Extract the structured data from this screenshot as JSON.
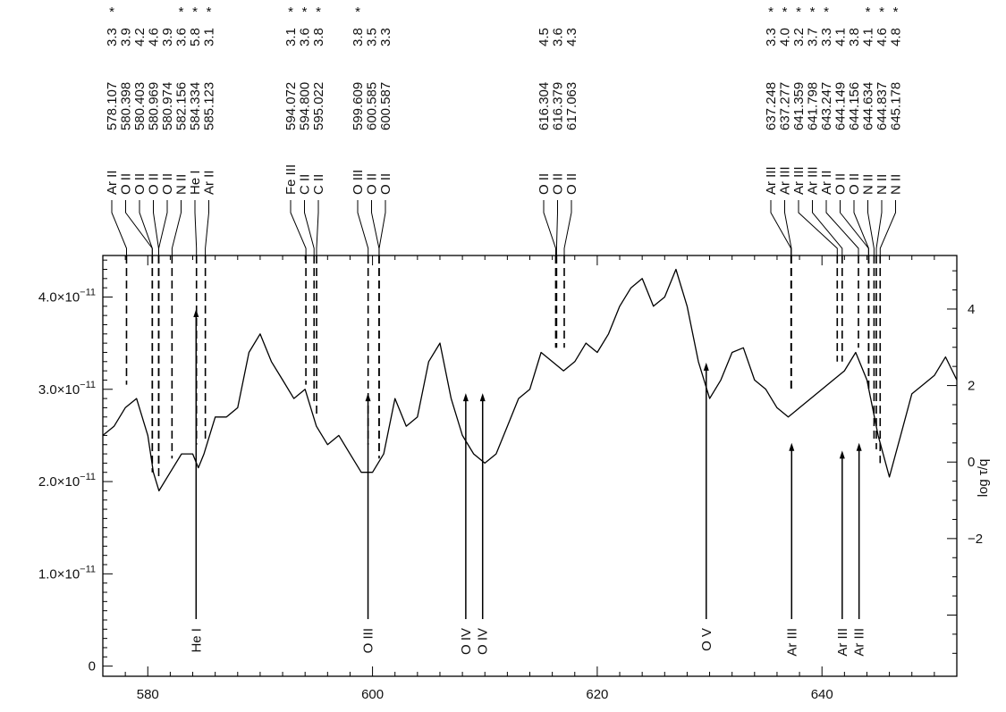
{
  "chart_data": {
    "type": "line",
    "title": "",
    "xlabel": "",
    "ylabel": "",
    "y2label": "log τ/q",
    "xlim": [
      576,
      652
    ],
    "ylim": [
      -1.1e-12,
      4.45e-11
    ],
    "y2lim": [
      -5.6,
      5.4
    ],
    "x_ticks": [
      "580",
      "600",
      "620",
      "640"
    ],
    "y_ticks": [
      {
        "value": 0,
        "base": "0",
        "exp": ""
      },
      {
        "value": 1e-11,
        "base": "1.0×10",
        "exp": "−11"
      },
      {
        "value": 2e-11,
        "base": "2.0×10",
        "exp": "−11"
      },
      {
        "value": 3e-11,
        "base": "3.0×10",
        "exp": "−11"
      },
      {
        "value": 4e-11,
        "base": "4.0×10",
        "exp": "−11"
      }
    ],
    "y2_ticks": [
      "−2",
      "0",
      "2",
      "4"
    ],
    "series": [
      {
        "x": [
          576,
          577,
          578,
          579,
          580,
          580.5,
          581,
          582,
          583,
          584,
          584.5,
          585,
          586,
          587,
          588,
          589,
          590,
          591,
          592,
          593,
          594,
          595,
          596,
          597,
          598,
          599,
          600,
          601,
          602,
          603,
          604,
          605,
          606,
          607,
          608,
          609,
          610,
          611,
          612,
          613,
          614,
          615,
          616,
          617,
          618,
          619,
          620,
          621,
          622,
          623,
          624,
          625,
          626,
          627,
          628,
          629,
          630,
          631,
          632,
          633,
          634,
          635,
          636,
          637,
          638,
          639,
          640,
          641,
          642,
          643,
          644,
          645,
          646,
          647,
          648,
          649,
          650,
          651,
          652
        ],
        "y": [
          2.5e-11,
          2.6e-11,
          2.8e-11,
          2.9e-11,
          2.5e-11,
          2.1e-11,
          1.9e-11,
          2.1e-11,
          2.3e-11,
          2.3e-11,
          2.15e-11,
          2.3e-11,
          2.7e-11,
          2.7e-11,
          2.8e-11,
          3.4e-11,
          3.6e-11,
          3.3e-11,
          3.1e-11,
          2.9e-11,
          3e-11,
          2.6e-11,
          2.4e-11,
          2.5e-11,
          2.3e-11,
          2.1e-11,
          2.1e-11,
          2.3e-11,
          2.9e-11,
          2.6e-11,
          2.7e-11,
          3.3e-11,
          3.5e-11,
          2.9e-11,
          2.5e-11,
          2.3e-11,
          2.2e-11,
          2.3e-11,
          2.6e-11,
          2.9e-11,
          3e-11,
          3.4e-11,
          3.3e-11,
          3.2e-11,
          3.3e-11,
          3.5e-11,
          3.4e-11,
          3.6e-11,
          3.9e-11,
          4.1e-11,
          4.2e-11,
          3.9e-11,
          4e-11,
          4.3e-11,
          3.9e-11,
          3.3e-11,
          2.9e-11,
          3.1e-11,
          3.4e-11,
          3.45e-11,
          3.1e-11,
          3e-11,
          2.8e-11,
          2.7e-11,
          2.8e-11,
          2.9e-11,
          3e-11,
          3.1e-11,
          3.2e-11,
          3.4e-11,
          3.1e-11,
          2.5e-11,
          2.05e-11,
          2.5e-11,
          2.95e-11,
          3.05e-11,
          3.15e-11,
          3.35e-11,
          3.1e-11
        ]
      }
    ],
    "lines": [
      {
        "ion": "Ar II",
        "wl": "578.107",
        "val": "3.3",
        "star": true,
        "wl_num": 578.107,
        "data_top": 3.05e-11
      },
      {
        "ion": "O II",
        "wl": "580.398",
        "val": "3.9",
        "star": false,
        "wl_num": 580.398,
        "data_top": 2.3e-11
      },
      {
        "ion": "O II",
        "wl": "580.403",
        "val": "4.2",
        "star": false,
        "wl_num": 580.403,
        "data_top": 2.1e-11
      },
      {
        "ion": "O II",
        "wl": "580.969",
        "val": "4.6",
        "star": false,
        "wl_num": 580.969,
        "data_top": 2.15e-11
      },
      {
        "ion": "O II",
        "wl": "580.974",
        "val": "3.9",
        "star": false,
        "wl_num": 580.974,
        "data_top": 2.05e-11
      },
      {
        "ion": "N II",
        "wl": "582.156",
        "val": "3.6",
        "star": true,
        "wl_num": 582.156,
        "data_top": 2.25e-11
      },
      {
        "ion": "He I",
        "wl": "584.334",
        "val": "5.8",
        "star": true,
        "wl_num": 584.334,
        "data_top": 2.4e-11
      },
      {
        "ion": "Ar II",
        "wl": "585.123",
        "val": "3.1",
        "star": true,
        "wl_num": 585.123,
        "data_top": 2.45e-11
      },
      {
        "ion": "Fe III",
        "wl": "594.072",
        "val": "3.1",
        "star": true,
        "wl_num": 594.072,
        "data_top": 3.05e-11
      },
      {
        "ion": "C II",
        "wl": "594.800",
        "val": "3.6",
        "star": true,
        "wl_num": 594.8,
        "data_top": 2.85e-11
      },
      {
        "ion": "C II",
        "wl": "595.022",
        "val": "3.8",
        "star": true,
        "wl_num": 595.022,
        "data_top": 2.7e-11
      },
      {
        "ion": "O III",
        "wl": "599.609",
        "val": "3.8",
        "star": true,
        "wl_num": 599.609,
        "data_top": 2.4e-11
      },
      {
        "ion": "O II",
        "wl": "600.585",
        "val": "3.5",
        "star": false,
        "wl_num": 600.585,
        "data_top": 2.3e-11
      },
      {
        "ion": "O II",
        "wl": "600.587",
        "val": "3.3",
        "star": false,
        "wl_num": 600.587,
        "data_top": 2.25e-11
      },
      {
        "ion": "O II",
        "wl": "616.304",
        "val": "4.5",
        "star": false,
        "wl_num": 616.304,
        "data_top": 3.45e-11
      },
      {
        "ion": "O II",
        "wl": "616.379",
        "val": "3.6",
        "star": false,
        "wl_num": 616.379,
        "data_top": 3.45e-11
      },
      {
        "ion": "O II",
        "wl": "617.063",
        "val": "4.3",
        "star": false,
        "wl_num": 617.063,
        "data_top": 3.45e-11
      },
      {
        "ion": "Ar III",
        "wl": "637.248",
        "val": "3.3",
        "star": true,
        "wl_num": 637.248,
        "data_top": 3e-11
      },
      {
        "ion": "Ar III",
        "wl": "637.277",
        "val": "4.0",
        "star": true,
        "wl_num": 637.277,
        "data_top": 3e-11
      },
      {
        "ion": "Ar III",
        "wl": "641.359",
        "val": "3.2",
        "star": true,
        "wl_num": 641.359,
        "data_top": 3.3e-11
      },
      {
        "ion": "Ar III",
        "wl": "641.798",
        "val": "3.7",
        "star": true,
        "wl_num": 641.798,
        "data_top": 3.3e-11
      },
      {
        "ion": "Ar II",
        "wl": "643.247",
        "val": "3.3",
        "star": true,
        "wl_num": 643.247,
        "data_top": 3.45e-11
      },
      {
        "ion": "O II",
        "wl": "644.149",
        "val": "4.1",
        "star": false,
        "wl_num": 644.149,
        "data_top": 3e-11
      },
      {
        "ion": "O II",
        "wl": "644.156",
        "val": "3.8",
        "star": false,
        "wl_num": 644.156,
        "data_top": 3e-11
      },
      {
        "ion": "N II",
        "wl": "644.634",
        "val": "4.1",
        "star": true,
        "wl_num": 644.634,
        "data_top": 2.45e-11
      },
      {
        "ion": "N II",
        "wl": "644.837",
        "val": "4.6",
        "star": true,
        "wl_num": 644.837,
        "data_top": 2.35e-11
      },
      {
        "ion": "N II",
        "wl": "645.178",
        "val": "4.8",
        "star": true,
        "wl_num": 645.178,
        "data_top": 2.2e-11
      }
    ],
    "arrows": [
      {
        "label": "He I",
        "x": 584.3,
        "log_tau_q": 4.0
      },
      {
        "label": "O III",
        "x": 599.6,
        "log_tau_q": 1.8
      },
      {
        "label": "O IV",
        "x": 608.3,
        "log_tau_q": 1.8
      },
      {
        "label": "O IV",
        "x": 609.8,
        "log_tau_q": 1.8
      },
      {
        "label": "O V",
        "x": 629.7,
        "log_tau_q": 2.6
      },
      {
        "label": "Ar III",
        "x": 637.3,
        "log_tau_q": 0.5
      },
      {
        "label": "Ar III",
        "x": 641.8,
        "log_tau_q": 0.3
      },
      {
        "label": "Ar III",
        "x": 643.3,
        "log_tau_q": 0.5
      }
    ],
    "legend": "none",
    "grid": false
  }
}
